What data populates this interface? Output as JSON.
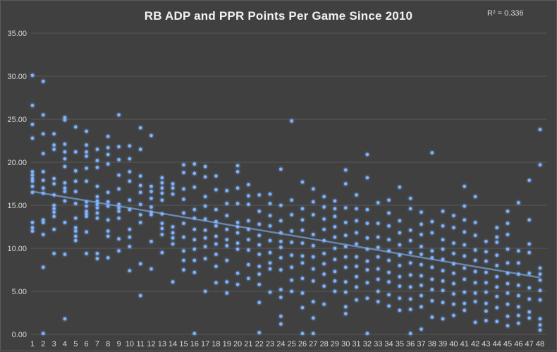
{
  "chart_data": {
    "type": "scatter",
    "title": "RB ADP and PPR Points Per Game Since 2010",
    "r_squared_label": "R² = 0.336",
    "xlabel": "",
    "ylabel": "",
    "xlim": [
      1,
      48
    ],
    "ylim": [
      0,
      35
    ],
    "y_ticks": [
      "0.00",
      "5.00",
      "10.00",
      "15.00",
      "20.00",
      "25.00",
      "30.00",
      "35.00"
    ],
    "x_ticks": [
      "1",
      "2",
      "3",
      "4",
      "5",
      "6",
      "7",
      "8",
      "9",
      "10",
      "11",
      "12",
      "13",
      "14",
      "15",
      "16",
      "17",
      "18",
      "19",
      "20",
      "21",
      "22",
      "23",
      "24",
      "25",
      "26",
      "27",
      "28",
      "29",
      "30",
      "31",
      "32",
      "33",
      "34",
      "35",
      "36",
      "37",
      "38",
      "39",
      "40",
      "41",
      "42",
      "43",
      "44",
      "45",
      "46",
      "47",
      "48"
    ],
    "grid": "horizontal",
    "colors": {
      "background": "#404040",
      "points": "#7eb3ff",
      "trendline": "#6f94c4",
      "gridlines": "#595959"
    },
    "trendline": {
      "type": "linear",
      "start": [
        1,
        16.6
      ],
      "end": [
        48,
        6.6
      ]
    },
    "points_by_x": [
      [
        30.1,
        26.6,
        24.4,
        22.8,
        18.9,
        18.5,
        18.1,
        17.8,
        17.2,
        16.5,
        13.0,
        12.4,
        12.0
      ],
      [
        29.4,
        25.5,
        23.3,
        21.0,
        18.9,
        17.9,
        17.0,
        16.4,
        13.3,
        13.0,
        11.6,
        7.8,
        0.1
      ],
      [
        23.3,
        22.0,
        21.5,
        18.1,
        17.5,
        16.2,
        15.0,
        14.6,
        14.2,
        13.7,
        12.2,
        9.4
      ],
      [
        25.2,
        24.9,
        22.1,
        21.2,
        20.4,
        19.5,
        17.6,
        17.0,
        16.6,
        15.5,
        13.0,
        9.3,
        1.8
      ],
      [
        24.1,
        21.2,
        19.0,
        17.8,
        16.6,
        15.2,
        13.5,
        12.4,
        12.0,
        11.4,
        10.9
      ],
      [
        23.6,
        22.0,
        21.2,
        20.7,
        19.3,
        17.8,
        15.4,
        14.9,
        14.3,
        14.0,
        13.7,
        11.9,
        9.4
      ],
      [
        21.5,
        20.2,
        19.4,
        17.2,
        16.0,
        15.5,
        15.1,
        14.7,
        14.1,
        13.5,
        9.4,
        8.8
      ],
      [
        23.0,
        21.7,
        20.9,
        19.8,
        16.5,
        15.4,
        14.9,
        13.3,
        12.0,
        11.4,
        8.9
      ],
      [
        25.5,
        21.8,
        20.3,
        18.5,
        16.9,
        15.1,
        14.7,
        14.3,
        13.5,
        11.1,
        9.7
      ],
      [
        21.9,
        20.4,
        18.9,
        17.8,
        15.6,
        14.5,
        12.2,
        11.3,
        10.2,
        7.4
      ],
      [
        24.0,
        21.5,
        18.4,
        17.3,
        16.5,
        15.1,
        13.9,
        13.0,
        8.2,
        4.5
      ],
      [
        23.1,
        17.2,
        16.6,
        15.8,
        14.8,
        14.2,
        13.9,
        10.8,
        7.6
      ],
      [
        18.2,
        17.6,
        17.0,
        16.4,
        15.6,
        14.0,
        12.9,
        12.3,
        11.6,
        9.5
      ],
      [
        17.5,
        17.0,
        16.3,
        12.5,
        11.8,
        11.2,
        10.5,
        6.1
      ],
      [
        19.7,
        18.8,
        16.9,
        15.7,
        14.1,
        12.9,
        11.3,
        9.7,
        8.6,
        7.5
      ],
      [
        19.8,
        18.7,
        17.1,
        14.5,
        13.5,
        12.2,
        11.0,
        9.9,
        8.6,
        7.2,
        0.1
      ],
      [
        19.5,
        18.3,
        16.0,
        14.9,
        13.4,
        12.1,
        11.2,
        10.2,
        8.8,
        5.0
      ],
      [
        18.4,
        16.8,
        14.5,
        13.1,
        12.6,
        11.4,
        10.5,
        9.3,
        7.9,
        6.0
      ],
      [
        16.7,
        15.2,
        13.8,
        12.2,
        11.0,
        10.3,
        8.6,
        6.1,
        4.8
      ],
      [
        19.6,
        18.9,
        17.0,
        15.2,
        13.0,
        12.5,
        11.8,
        10.6,
        9.9,
        7.1,
        5.8
      ],
      [
        17.4,
        16.1,
        15.1,
        13.2,
        12.2,
        11.0,
        9.8,
        8.1,
        6.5
      ],
      [
        16.2,
        14.3,
        12.8,
        11.5,
        10.4,
        9.3,
        7.9,
        7.0,
        5.8,
        3.7,
        0.2
      ],
      [
        16.3,
        15.2,
        13.8,
        12.6,
        10.9,
        9.5,
        8.3,
        7.6,
        4.9
      ],
      [
        19.2,
        15.0,
        13.2,
        11.8,
        10.8,
        10.1,
        8.9,
        7.5,
        5.2,
        4.3,
        2.1,
        1.2
      ],
      [
        24.8,
        15.6,
        13.9,
        12.0,
        10.7,
        9.2,
        7.8,
        6.3,
        5.0
      ],
      [
        17.7,
        14.6,
        13.3,
        12.1,
        10.6,
        9.1,
        8.3,
        6.5,
        4.8,
        3.1,
        0.1
      ],
      [
        16.9,
        15.4,
        13.9,
        11.6,
        10.3,
        9.0,
        7.6,
        6.2,
        3.8,
        1.9,
        0.1
      ],
      [
        16.0,
        14.8,
        13.4,
        12.2,
        10.9,
        9.4,
        8.2,
        7.0,
        5.6,
        3.5
      ],
      [
        15.5,
        14.6,
        13.7,
        12.5,
        11.3,
        10.0,
        8.7,
        7.3,
        6.2,
        5.0
      ],
      [
        19.1,
        17.5,
        14.7,
        13.0,
        11.5,
        10.2,
        9.0,
        7.8,
        6.1,
        4.9,
        3.2,
        2.4
      ],
      [
        16.2,
        14.6,
        13.2,
        11.8,
        10.5,
        9.0,
        7.9,
        6.7,
        5.5,
        4.0
      ],
      [
        20.9,
        18.2,
        14.5,
        12.9,
        11.2,
        9.9,
        8.5,
        7.5,
        6.0,
        4.2,
        0.1
      ],
      [
        15.3,
        12.9,
        11.3,
        10.1,
        9.0,
        7.6,
        6.4,
        5.0,
        3.8
      ],
      [
        15.6,
        14.1,
        12.6,
        11.0,
        9.7,
        8.6,
        7.2,
        6.1,
        4.6,
        3.3
      ],
      [
        17.1,
        13.2,
        11.8,
        10.4,
        9.2,
        8.0,
        6.7,
        5.6,
        4.2,
        2.8
      ],
      [
        15.8,
        14.6,
        12.1,
        10.9,
        9.5,
        8.3,
        6.9,
        5.5,
        4.1,
        2.9,
        0.1
      ],
      [
        14.2,
        12.8,
        11.6,
        10.2,
        9.3,
        8.1,
        6.8,
        5.7,
        4.5,
        3.2,
        0.6
      ],
      [
        21.1,
        13.1,
        11.8,
        9.7,
        8.9,
        7.8,
        6.4,
        5.2,
        3.9,
        2.0
      ],
      [
        14.3,
        12.6,
        11.0,
        9.9,
        8.7,
        7.4,
        6.2,
        5.1,
        3.7,
        1.8
      ],
      [
        13.8,
        12.4,
        10.6,
        9.4,
        8.2,
        7.1,
        5.9,
        4.7,
        3.5,
        2.2
      ],
      [
        17.2,
        14.9,
        13.3,
        11.9,
        10.4,
        9.1,
        7.7,
        6.4,
        4.9,
        3.6,
        2.8
      ],
      [
        16.0,
        13.0,
        11.5,
        9.8,
        8.6,
        7.3,
        6.0,
        4.8,
        3.8,
        1.4
      ],
      [
        10.8,
        9.6,
        8.5,
        7.2,
        6.0,
        4.9,
        3.6,
        2.7,
        1.6
      ],
      [
        12.4,
        11.3,
        10.7,
        9.2,
        8.0,
        6.7,
        5.5,
        4.4,
        3.1,
        1.5
      ],
      [
        14.3,
        12.9,
        11.6,
        9.9,
        8.3,
        7.1,
        5.9,
        4.8,
        3.5,
        2.1,
        1.0
      ],
      [
        15.3,
        9.7,
        8.3,
        7.0,
        5.7,
        4.5,
        3.2,
        2.2,
        1.3
      ],
      [
        17.9,
        13.3,
        10.5,
        9.5,
        7.1,
        5.4,
        4.1,
        2.6,
        1.9
      ],
      [
        23.8,
        19.7,
        7.7,
        7.0,
        6.3,
        5.1,
        4.0,
        1.8,
        1.1,
        0.5
      ]
    ]
  }
}
